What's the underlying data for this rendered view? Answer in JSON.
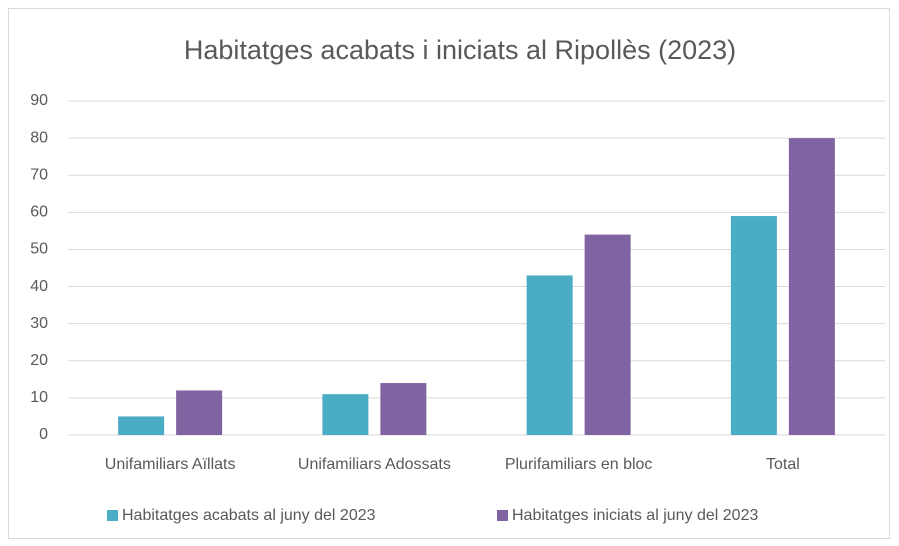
{
  "chart_data": {
    "type": "bar",
    "title": "Habitatges acabats i iniciats al Ripollès (2023)",
    "categories": [
      "Unifamiliars Aïllats",
      "Unifamiliars Adossats",
      "Plurifamiliars en bloc",
      "Total"
    ],
    "series": [
      {
        "name": "Habitatges acabats al juny del 2023",
        "color": "#4bacc6",
        "values": [
          5,
          11,
          43,
          59
        ]
      },
      {
        "name": "Habitatges iniciats al juny del 2023",
        "color": "#8064a2",
        "values": [
          12,
          14,
          54,
          80
        ]
      }
    ],
    "ylim": [
      0,
      90
    ],
    "yticks": [
      0,
      10,
      20,
      30,
      40,
      50,
      60,
      70,
      80,
      90
    ],
    "grid": true,
    "legend": "bottom"
  }
}
